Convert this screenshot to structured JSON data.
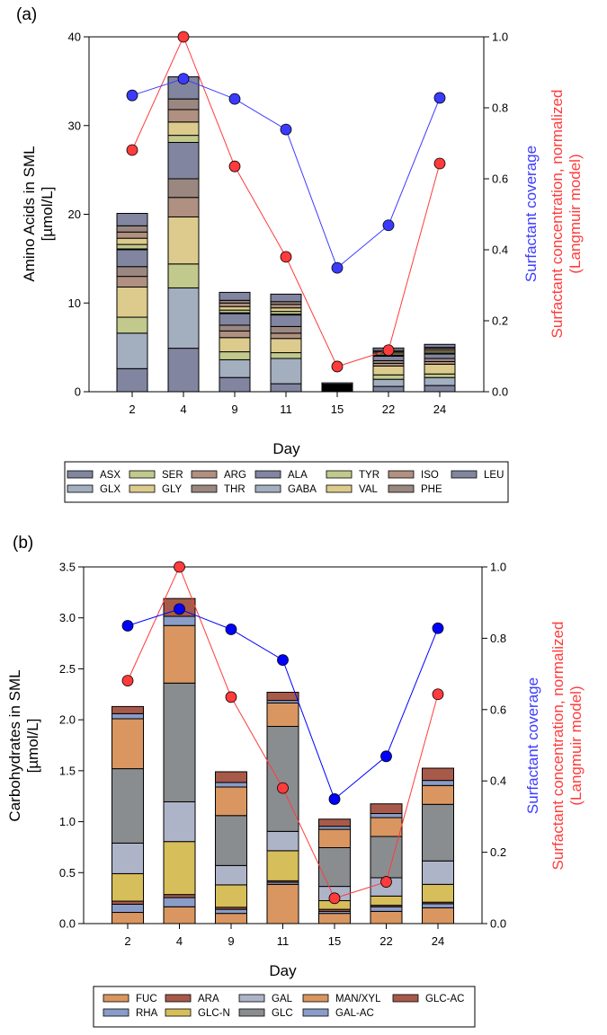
{
  "chart_data": [
    {
      "type": "bar",
      "stacked": true,
      "panel_label": "(a)",
      "xlabel": "Day",
      "ylabel": [
        "Amino Acids in SML",
        "[µmol/L]"
      ],
      "y2label_coverage": "Surfactant coverage",
      "y2label_concentration": [
        "Surfactant concentration, normalized",
        "(Langmuir model)"
      ],
      "categories": [
        "2",
        "4",
        "9",
        "11",
        "15",
        "22",
        "24"
      ],
      "ylim": [
        0,
        40
      ],
      "yticks": [
        "0",
        "10",
        "20",
        "30",
        "40"
      ],
      "y2lim": [
        0,
        1.0
      ],
      "y2ticks": [
        "0.0",
        "0.2",
        "0.4",
        "0.6",
        "0.8",
        "1.0"
      ],
      "legend_placement": "bottom",
      "series": [
        {
          "name": "ASX",
          "color": "#8185a0",
          "values": [
            2.6,
            4.9,
            1.6,
            0.9,
            0.1,
            0.6,
            0.7
          ]
        },
        {
          "name": "GLX",
          "color": "#a3afbf",
          "values": [
            4.0,
            6.8,
            2.0,
            2.85,
            0.1,
            0.8,
            0.9
          ]
        },
        {
          "name": "SER",
          "color": "#c2c98c",
          "values": [
            1.8,
            2.7,
            0.9,
            0.65,
            0.05,
            0.5,
            0.4
          ]
        },
        {
          "name": "GLY",
          "color": "#dccb8d",
          "values": [
            3.4,
            5.3,
            1.6,
            1.6,
            0.1,
            1.0,
            1.1
          ]
        },
        {
          "name": "ARG",
          "color": "#b09080",
          "values": [
            1.2,
            2.2,
            0.75,
            0.6,
            0.05,
            0.3,
            0.3
          ]
        },
        {
          "name": "THR",
          "color": "#9a8880",
          "values": [
            1.1,
            2.1,
            0.65,
            0.75,
            0.05,
            0.3,
            0.35
          ]
        },
        {
          "name": "ALA",
          "color": "#8185a0",
          "values": [
            1.9,
            4.1,
            1.3,
            1.3,
            0.1,
            0.5,
            0.5
          ]
        },
        {
          "name": "GABA",
          "color": "#a3afbf",
          "values": [
            0.1,
            0.0,
            0.1,
            0.1,
            0.05,
            0.05,
            0.05
          ]
        },
        {
          "name": "TYR",
          "color": "#c2c98c",
          "values": [
            0.5,
            0.8,
            0.3,
            0.3,
            0.05,
            0.1,
            0.15
          ]
        },
        {
          "name": "VAL",
          "color": "#dccb8d",
          "values": [
            0.7,
            1.5,
            0.4,
            0.4,
            0.1,
            0.2,
            0.2
          ]
        },
        {
          "name": "ISO",
          "color": "#b09080",
          "values": [
            0.7,
            1.4,
            0.4,
            0.4,
            0.05,
            0.15,
            0.2
          ]
        },
        {
          "name": "PHE",
          "color": "#9a8880",
          "values": [
            0.7,
            1.2,
            0.3,
            0.3,
            0.05,
            0.15,
            0.15
          ]
        },
        {
          "name": "LEU",
          "color": "#8185a0",
          "values": [
            1.4,
            2.5,
            0.9,
            0.85,
            0.15,
            0.28,
            0.34
          ]
        }
      ],
      "lines": [
        {
          "name": "Surfactant coverage",
          "axis": "right",
          "color": "#3b3bff",
          "values": [
            0.835,
            0.882,
            0.825,
            0.739,
            0.349,
            0.469,
            0.828
          ]
        },
        {
          "name": "Surfactant concentration, normalized (Langmuir model)",
          "axis": "right",
          "color": "#ff3b3b",
          "values": [
            0.681,
            1.0,
            0.635,
            0.38,
            0.071,
            0.117,
            0.643
          ]
        }
      ]
    },
    {
      "type": "bar",
      "stacked": true,
      "panel_label": "(b)",
      "xlabel": "Day",
      "ylabel": [
        "Carbohydrates in SML",
        "[µmol/L]"
      ],
      "y2label_coverage": "Surfactant coverage",
      "y2label_concentration": [
        "Surfactant concentration, normalized",
        "(Langmuir model)"
      ],
      "categories": [
        "2",
        "4",
        "9",
        "11",
        "15",
        "22",
        "24"
      ],
      "ylim": [
        0,
        3.5
      ],
      "yticks": [
        "0.0",
        "0.5",
        "1.0",
        "1.5",
        "2.0",
        "2.5",
        "3.0",
        "3.5"
      ],
      "y2lim": [
        0,
        1.0
      ],
      "y2ticks": [
        "0.0",
        "0.2",
        "0.4",
        "0.6",
        "0.8",
        "1.0"
      ],
      "legend_placement": "bottom",
      "series": [
        {
          "name": "FUC",
          "color": "#d99660",
          "values": [
            0.11,
            0.165,
            0.1,
            0.385,
            0.1,
            0.12,
            0.155
          ]
        },
        {
          "name": "RHA",
          "color": "#8a9dc8",
          "values": [
            0.08,
            0.09,
            0.04,
            0.02,
            0.02,
            0.045,
            0.04
          ]
        },
        {
          "name": "ARA",
          "color": "#a85a4a",
          "values": [
            0.03,
            0.03,
            0.02,
            0.015,
            0.02,
            0.015,
            0.015
          ]
        },
        {
          "name": "GLC-N",
          "color": "#d6be5a",
          "values": [
            0.27,
            0.52,
            0.22,
            0.295,
            0.085,
            0.09,
            0.175
          ]
        },
        {
          "name": "GAL",
          "color": "#aeb4c8",
          "values": [
            0.3,
            0.39,
            0.19,
            0.19,
            0.14,
            0.18,
            0.23
          ]
        },
        {
          "name": "GLC",
          "color": "#8a8d90",
          "values": [
            0.73,
            1.165,
            0.49,
            1.03,
            0.38,
            0.405,
            0.555
          ]
        },
        {
          "name": "MAN/XYL",
          "color": "#d99660",
          "values": [
            0.49,
            0.565,
            0.28,
            0.23,
            0.18,
            0.185,
            0.185
          ]
        },
        {
          "name": "GAL-AC",
          "color": "#8a9dc8",
          "values": [
            0.05,
            0.09,
            0.045,
            0.025,
            0.03,
            0.04,
            0.05
          ]
        },
        {
          "name": "GLC-AC",
          "color": "#a85a4a",
          "values": [
            0.07,
            0.175,
            0.105,
            0.08,
            0.07,
            0.095,
            0.12
          ]
        }
      ],
      "lines": [
        {
          "name": "Surfactant coverage",
          "axis": "right",
          "color": "#0000ff",
          "values": [
            0.835,
            0.882,
            0.825,
            0.739,
            0.349,
            0.469,
            0.828
          ]
        },
        {
          "name": "Surfactant concentration, normalized (Langmuir model)",
          "axis": "right",
          "color": "#ff3b3b",
          "values": [
            0.681,
            1.0,
            0.635,
            0.38,
            0.071,
            0.117,
            0.643
          ]
        }
      ]
    }
  ]
}
